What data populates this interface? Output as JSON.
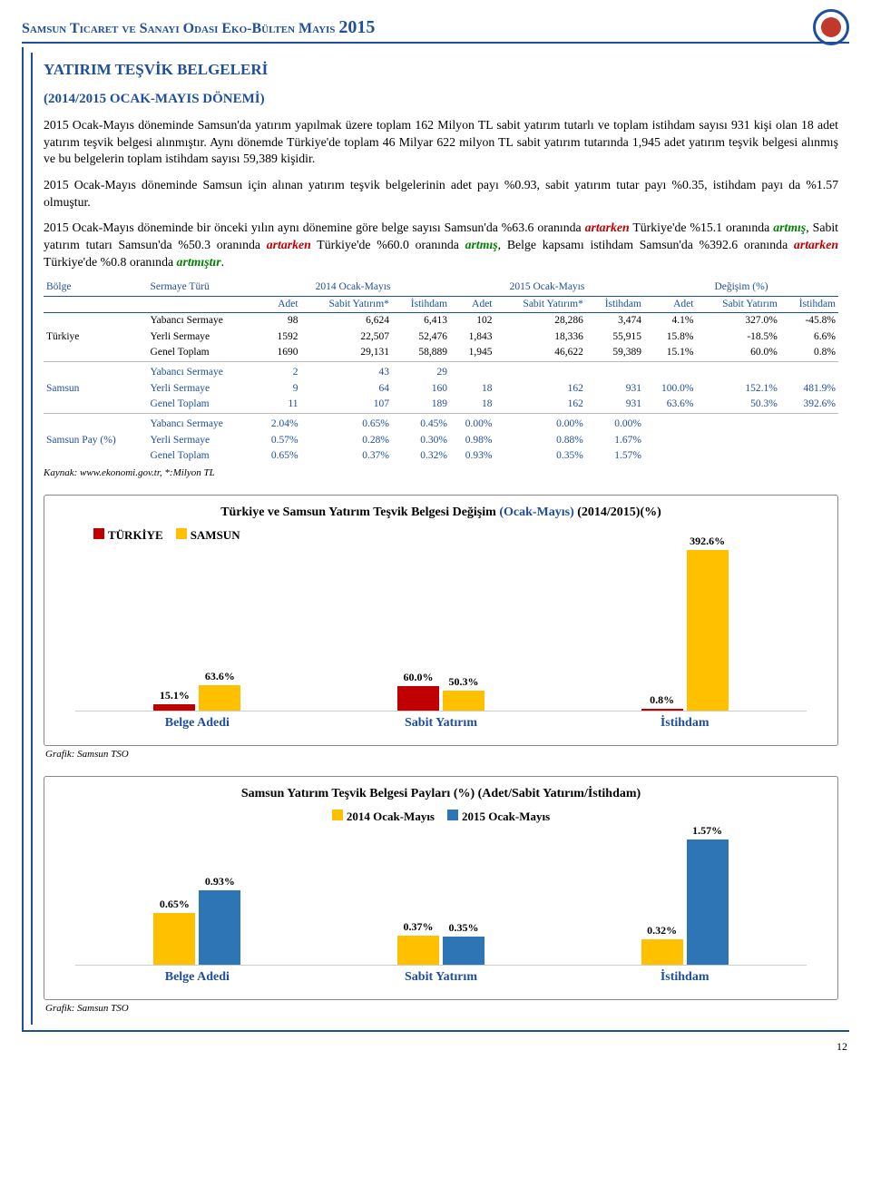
{
  "header": {
    "title_prefix": "Samsun Ticaret ve Sanayi Odasi Eko-Bülten Mayıs",
    "year": "2015"
  },
  "section": {
    "title": "YATIRIM TEŞVİK BELGELERİ",
    "subtitle": "(2014/2015 OCAK-MAYIS DÖNEMİ)"
  },
  "paragraphs": {
    "p1": "2015 Ocak-Mayıs döneminde Samsun'da yatırım yapılmak üzere toplam 162 Milyon TL sabit yatırım tutarlı ve toplam istihdam sayısı 931 kişi olan 18 adet yatırım teşvik belgesi alınmıştır. Aynı dönemde Türkiye'de toplam 46 Milyar 622 milyon TL sabit yatırım tutarında 1,945 adet yatırım teşvik belgesi alınmış ve bu belgelerin toplam istihdam sayısı 59,389 kişidir.",
    "p2": "2015 Ocak-Mayıs döneminde Samsun için alınan yatırım teşvik belgelerinin adet payı %0.93, sabit yatırım tutar payı %0.35, istihdam payı da %1.57 olmuştur.",
    "p3a": "2015 Ocak-Mayıs döneminde bir önceki yılın aynı dönemine göre belge sayısı Samsun'da %63.6 oranında ",
    "p3_artarken1": "artarken",
    "p3b": " Türkiye'de %15.1 oranında ",
    "p3_artmis1": "artmış",
    "p3c": ", Sabit yatırım tutarı Samsun'da %50.3 oranında ",
    "p3_artarken2": "artarken",
    "p3d": " Türkiye'de %60.0 oranında ",
    "p3_artmis2": "artmış",
    "p3e": ", Belge kapsamı istihdam Samsun'da %392.6 oranında ",
    "p3_artarken3": "artarken",
    "p3f": " Türkiye'de %0.8 oranında ",
    "p3_artmistir": "artmıştır",
    "p3g": "."
  },
  "table": {
    "col_bolge": "Bölge",
    "col_sermaye": "Sermaye Türü",
    "grp_2014": "2014 Ocak-Mayıs",
    "grp_2015": "2015 Ocak-Mayıs",
    "grp_degisim": "Değişim (%)",
    "sub_adet": "Adet",
    "sub_sabit": "Sabit Yatırım*",
    "sub_sabit2": "Sabit Yatırım",
    "sub_istihdam": "İstihdam",
    "regions": {
      "turkiye": "Türkiye",
      "samsun": "Samsun",
      "samsun_pay": "Samsun Pay (%)"
    },
    "rowlabels": {
      "yabanci": "Yabancı Sermaye",
      "yerli": "Yerli Sermaye",
      "toplam": "Genel Toplam"
    },
    "turkiye": {
      "yabanci": [
        "98",
        "6,624",
        "6,413",
        "102",
        "28,286",
        "3,474",
        "4.1%",
        "327.0%",
        "-45.8%"
      ],
      "yerli": [
        "1592",
        "22,507",
        "52,476",
        "1,843",
        "18,336",
        "55,915",
        "15.8%",
        "-18.5%",
        "6.6%"
      ],
      "toplam": [
        "1690",
        "29,131",
        "58,889",
        "1,945",
        "46,622",
        "59,389",
        "15.1%",
        "60.0%",
        "0.8%"
      ]
    },
    "samsun": {
      "yabanci": [
        "2",
        "43",
        "29",
        "",
        "",
        "",
        "",
        "",
        ""
      ],
      "yerli": [
        "9",
        "64",
        "160",
        "18",
        "162",
        "931",
        "100.0%",
        "152.1%",
        "481.9%"
      ],
      "toplam": [
        "11",
        "107",
        "189",
        "18",
        "162",
        "931",
        "63.6%",
        "50.3%",
        "392.6%"
      ]
    },
    "samsun_pay": {
      "yabanci": [
        "2.04%",
        "0.65%",
        "0.45%",
        "0.00%",
        "0.00%",
        "0.00%",
        "",
        "",
        ""
      ],
      "yerli": [
        "0.57%",
        "0.28%",
        "0.30%",
        "0.98%",
        "0.88%",
        "1.67%",
        "",
        "",
        ""
      ],
      "toplam": [
        "0.65%",
        "0.37%",
        "0.32%",
        "0.93%",
        "0.35%",
        "1.57%",
        "",
        "",
        ""
      ]
    },
    "kaynak": "Kaynak: www.ekonomi.gov.tr, *:Milyon TL"
  },
  "chart1": {
    "title_plain": "Türkiye ve Samsun Yatırım Teşvik Belgesi Değişim ",
    "title_accent": "(Ocak-Mayıs)",
    "title_tail": " (2014/2015)(%)",
    "legend": {
      "a": "TÜRKİYE",
      "b": "SAMSUN"
    },
    "colors": {
      "a": "#c00000",
      "b": "#ffc000"
    },
    "categories": [
      "Belge Adedi",
      "Sabit Yatırım",
      "İstihdam"
    ],
    "seriesA": [
      15.1,
      60.0,
      0.8
    ],
    "seriesB": [
      63.6,
      50.3,
      392.6
    ],
    "labelsA": [
      "15.1%",
      "60.0%",
      "0.8%"
    ],
    "labelsB": [
      "63.6%",
      "50.3%",
      "392.6%"
    ],
    "ymax": 400,
    "cat_color": "#1f4e9c",
    "grafik": "Grafik: Samsun TSO"
  },
  "chart2": {
    "title": "Samsun Yatırım Teşvik Belgesi Payları (%) (Adet/Sabit Yatırım/İstihdam)",
    "legend": {
      "a": "2014 Ocak-Mayıs",
      "b": "2015 Ocak-Mayıs"
    },
    "colors": {
      "a": "#ffc000",
      "b": "#2e75b6"
    },
    "categories": [
      "Belge Adedi",
      "Sabit Yatırım",
      "İstihdam"
    ],
    "seriesA": [
      0.65,
      0.37,
      0.32
    ],
    "seriesB": [
      0.93,
      0.35,
      1.57
    ],
    "labelsA": [
      "0.65%",
      "0.37%",
      "0.32%"
    ],
    "labelsB": [
      "0.93%",
      "0.35%",
      "1.57%"
    ],
    "ymax": 1.7,
    "cat_color": "#1f4e9c",
    "grafik": "Grafik: Samsun TSO"
  },
  "page_number": "12"
}
